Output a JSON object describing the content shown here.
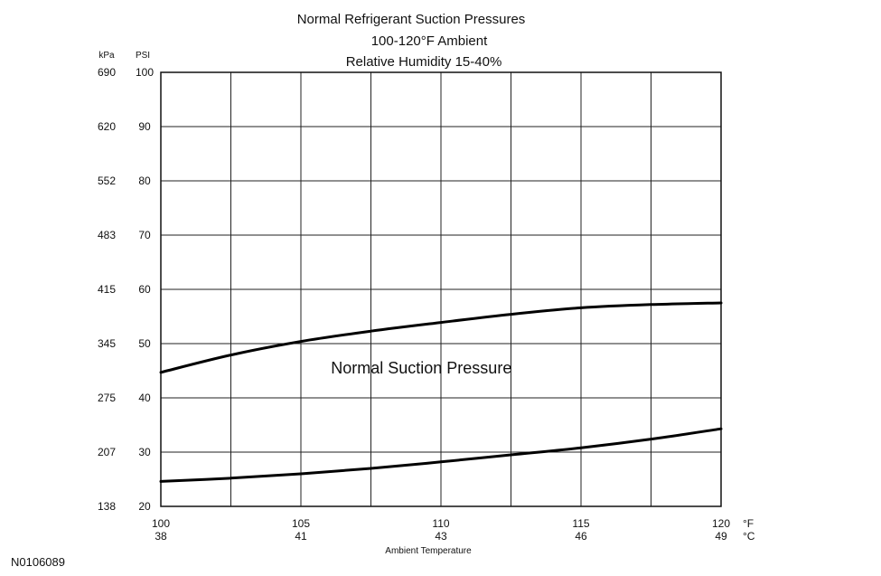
{
  "chart_data": {
    "type": "line",
    "title_lines": [
      "Normal  Refrigerant  Suction  Pressures",
      "100-120°F Ambient",
      "Relative Humidity 15-40%"
    ],
    "xlabel": "Ambient Temperature",
    "x_unit_f": "°F",
    "x_unit_c": "°C",
    "y_unit_kpa": "kPa",
    "y_unit_psi": "PSI",
    "xlim": [
      100,
      120
    ],
    "ylim": [
      20,
      100
    ],
    "x_ticks_f": [
      {
        "value": 100,
        "label": "100"
      },
      {
        "value": 105,
        "label": "105"
      },
      {
        "value": 110,
        "label": "110"
      },
      {
        "value": 115,
        "label": "115"
      },
      {
        "value": 120,
        "label": "120"
      }
    ],
    "x_ticks_c": [
      {
        "value": 100,
        "label": "38"
      },
      {
        "value": 105,
        "label": "41"
      },
      {
        "value": 110,
        "label": "43"
      },
      {
        "value": 115,
        "label": "46"
      },
      {
        "value": 120,
        "label": "49"
      }
    ],
    "x_gridlines": [
      100,
      102.5,
      105,
      107.5,
      110,
      112.5,
      115,
      117.5,
      120
    ],
    "y_ticks": [
      {
        "psi": 100,
        "kpa": "690"
      },
      {
        "psi": 90,
        "kpa": "620"
      },
      {
        "psi": 80,
        "kpa": "552"
      },
      {
        "psi": 70,
        "kpa": "483"
      },
      {
        "psi": 60,
        "kpa": "415"
      },
      {
        "psi": 50,
        "kpa": "345"
      },
      {
        "psi": 40,
        "kpa": "275"
      },
      {
        "psi": 30,
        "kpa": "207"
      },
      {
        "psi": 20,
        "kpa": "138"
      }
    ],
    "grid": true,
    "series": [
      {
        "x": [
          100,
          102.5,
          105,
          107.5,
          110,
          112.5,
          115,
          117.5,
          120
        ],
        "y": [
          44.7,
          47.9,
          50.4,
          52.3,
          53.9,
          55.4,
          56.6,
          57.2,
          57.5
        ]
      },
      {
        "x": [
          100,
          102.5,
          105,
          107.5,
          110,
          112.5,
          115,
          117.5,
          120
        ],
        "y": [
          24.6,
          25.2,
          26.0,
          27.0,
          28.2,
          29.5,
          30.8,
          32.4,
          34.3
        ]
      }
    ],
    "band_label": "Normal Suction Pressure",
    "band_label_position": {
      "x": 109.3,
      "y": 44.5
    }
  },
  "figure_id": "N0106089"
}
